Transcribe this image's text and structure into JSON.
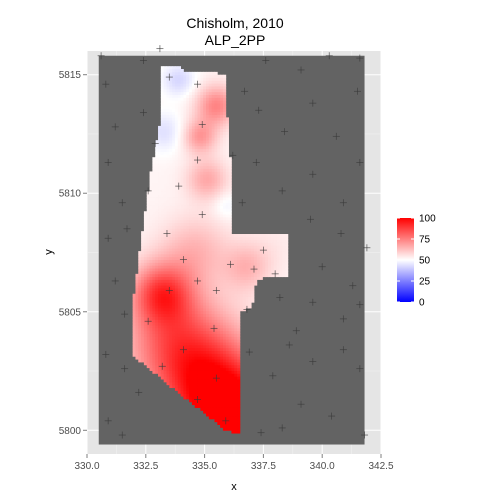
{
  "chart_data": {
    "type": "heatmap",
    "title_line1": "Chisholm, 2010",
    "title_line2": "ALP_2PP",
    "xlabel": "x",
    "ylabel": "y",
    "xlim": [
      330.0,
      342.5
    ],
    "ylim": [
      5799.0,
      5816.0
    ],
    "x_ticks": [
      330.0,
      332.5,
      335.0,
      337.5,
      340.0,
      342.5
    ],
    "x_tick_labels": [
      "330.0",
      "332.5",
      "335.0",
      "337.5",
      "340.0",
      "342.5"
    ],
    "y_ticks": [
      5800,
      5805,
      5810,
      5815
    ],
    "y_tick_labels": [
      "5800",
      "5805",
      "5810",
      "5815"
    ],
    "grid": true,
    "legend": {
      "placement": "right",
      "title": "",
      "breaks": [
        0,
        25,
        50,
        75,
        100
      ],
      "break_labels": [
        "0",
        "25",
        "50",
        "75",
        "100"
      ],
      "low_color": "#0000ff",
      "mid_color": "#ffffff",
      "high_color": "#ff0000",
      "midpoint": 50
    },
    "raster_extent": {
      "x": [
        330.5,
        341.8
      ],
      "y": [
        5799.4,
        5815.8
      ]
    },
    "background_color": "#636363",
    "electorate_polygon": [
      [
        333.2,
        5815.4
      ],
      [
        334.0,
        5815.4
      ],
      [
        334.1,
        5815.1
      ],
      [
        335.2,
        5815.1
      ],
      [
        335.9,
        5815.0
      ],
      [
        336.0,
        5812.0
      ],
      [
        336.2,
        5810.8
      ],
      [
        336.2,
        5808.3
      ],
      [
        338.6,
        5808.3
      ],
      [
        338.6,
        5806.5
      ],
      [
        337.2,
        5806.4
      ],
      [
        337.0,
        5805.2
      ],
      [
        336.5,
        5805.0
      ],
      [
        336.5,
        5803.6
      ],
      [
        336.5,
        5799.8
      ],
      [
        335.9,
        5800.0
      ],
      [
        334.0,
        5801.5
      ],
      [
        331.9,
        5803.2
      ],
      [
        332.0,
        5805.8
      ],
      [
        332.7,
        5810.8
      ],
      [
        333.2,
        5813.5
      ]
    ],
    "hotspots": [
      {
        "x": 336.4,
        "y": 5800.3,
        "value": 92,
        "spread": 1.4
      },
      {
        "x": 335.3,
        "y": 5801.8,
        "value": 86,
        "spread": 1.6
      },
      {
        "x": 333.2,
        "y": 5805.8,
        "value": 82,
        "spread": 0.9
      },
      {
        "x": 333.8,
        "y": 5803.8,
        "value": 76,
        "spread": 1.5
      },
      {
        "x": 335.5,
        "y": 5813.7,
        "value": 72,
        "spread": 0.6
      },
      {
        "x": 334.8,
        "y": 5812.4,
        "value": 68,
        "spread": 0.5
      },
      {
        "x": 335.1,
        "y": 5810.6,
        "value": 65,
        "spread": 0.6
      },
      {
        "x": 334.6,
        "y": 5807.6,
        "value": 62,
        "spread": 1.0
      },
      {
        "x": 336.8,
        "y": 5806.9,
        "value": 62,
        "spread": 0.7
      },
      {
        "x": 333.9,
        "y": 5814.8,
        "value": 40,
        "spread": 0.5
      },
      {
        "x": 333.3,
        "y": 5812.6,
        "value": 42,
        "spread": 0.6
      },
      {
        "x": 335.9,
        "y": 5809.5,
        "value": 45,
        "spread": 0.4
      },
      {
        "x": 338.0,
        "y": 5807.8,
        "value": 52,
        "spread": 0.8
      }
    ],
    "booths": [
      [
        330.6,
        5815.8
      ],
      [
        330.8,
        5814.6
      ],
      [
        331.2,
        5812.8
      ],
      [
        330.9,
        5811.3
      ],
      [
        331.5,
        5809.6
      ],
      [
        330.9,
        5808.1
      ],
      [
        331.2,
        5806.3
      ],
      [
        331.6,
        5804.9
      ],
      [
        330.8,
        5803.2
      ],
      [
        331.6,
        5802.6
      ],
      [
        332.2,
        5801.6
      ],
      [
        330.9,
        5800.4
      ],
      [
        331.5,
        5799.8
      ],
      [
        332.4,
        5815.6
      ],
      [
        333.5,
        5814.9
      ],
      [
        332.4,
        5813.4
      ],
      [
        332.9,
        5812.1
      ],
      [
        332.6,
        5810.1
      ],
      [
        331.7,
        5808.5
      ],
      [
        333.1,
        5816.1
      ],
      [
        334.7,
        5814.6
      ],
      [
        334.9,
        5812.9
      ],
      [
        334.7,
        5811.4
      ],
      [
        334.9,
        5809.1
      ],
      [
        333.4,
        5808.3
      ],
      [
        334.1,
        5807.2
      ],
      [
        333.5,
        5805.9
      ],
      [
        332.6,
        5804.6
      ],
      [
        334.7,
        5806.3
      ],
      [
        335.5,
        5805.9
      ],
      [
        336.1,
        5807.0
      ],
      [
        337.1,
        5806.8
      ],
      [
        337.5,
        5807.6
      ],
      [
        338.0,
        5806.6
      ],
      [
        336.8,
        5805.1
      ],
      [
        335.4,
        5804.3
      ],
      [
        334.1,
        5803.4
      ],
      [
        333.2,
        5802.7
      ],
      [
        335.5,
        5802.2
      ],
      [
        334.7,
        5801.3
      ],
      [
        335.9,
        5800.4
      ],
      [
        336.9,
        5803.3
      ],
      [
        337.9,
        5802.3
      ],
      [
        338.6,
        5803.6
      ],
      [
        339.6,
        5802.9
      ],
      [
        340.9,
        5803.4
      ],
      [
        341.6,
        5802.6
      ],
      [
        339.1,
        5801.1
      ],
      [
        340.4,
        5800.6
      ],
      [
        341.8,
        5799.8
      ],
      [
        338.3,
        5800.1
      ],
      [
        337.4,
        5799.9
      ],
      [
        337.3,
        5813.5
      ],
      [
        338.4,
        5812.6
      ],
      [
        339.6,
        5813.8
      ],
      [
        340.6,
        5812.4
      ],
      [
        341.5,
        5814.3
      ],
      [
        339.1,
        5815.2
      ],
      [
        340.3,
        5815.8
      ],
      [
        341.6,
        5815.7
      ],
      [
        337.6,
        5815.6
      ],
      [
        337.2,
        5811.3
      ],
      [
        338.3,
        5810.1
      ],
      [
        339.6,
        5810.8
      ],
      [
        340.9,
        5809.6
      ],
      [
        341.6,
        5811.3
      ],
      [
        339.5,
        5808.9
      ],
      [
        340.8,
        5808.3
      ],
      [
        341.9,
        5807.7
      ],
      [
        340.0,
        5806.9
      ],
      [
        341.3,
        5806.1
      ],
      [
        339.6,
        5805.4
      ],
      [
        340.9,
        5804.7
      ],
      [
        341.6,
        5805.3
      ],
      [
        336.6,
        5809.6
      ],
      [
        333.9,
        5810.3
      ],
      [
        336.2,
        5811.6
      ],
      [
        336.7,
        5814.3
      ],
      [
        338.9,
        5804.2
      ],
      [
        338.2,
        5805.6
      ]
    ]
  }
}
